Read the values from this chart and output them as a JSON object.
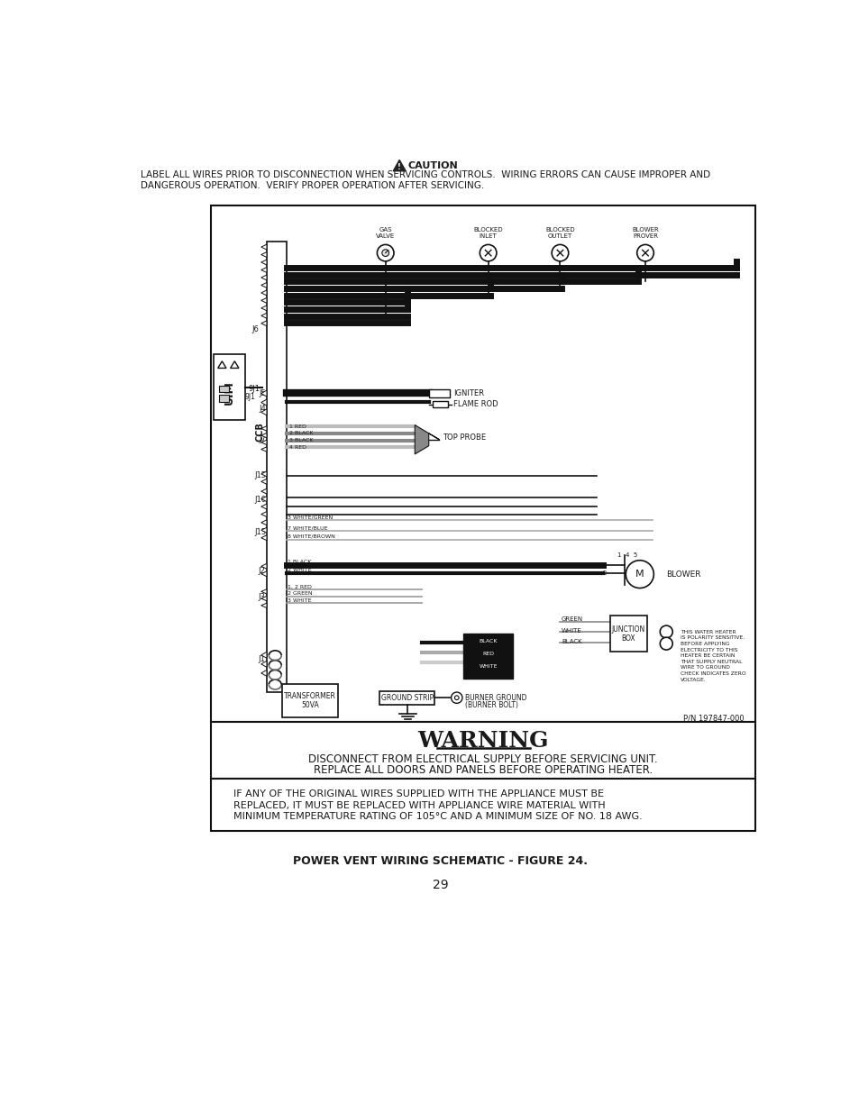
{
  "page_bg": "#ffffff",
  "text_color": "#1a1a1a",
  "caution_title": "CAUTION",
  "caution_line1": "LABEL ALL WIRES PRIOR TO DISCONNECTION WHEN SERVICING CONTROLS.  WIRING ERRORS CAN CAUSE IMPROPER AND",
  "caution_line2": "DANGEROUS OPERATION.  VERIFY PROPER OPERATION AFTER SERVICING.",
  "warning_title": "WARNING",
  "warning_line1": "DISCONNECT FROM ELECTRICAL SUPPLY BEFORE SERVICING UNIT.",
  "warning_line2": "REPLACE ALL DOORS AND PANELS BEFORE OPERATING HEATER.",
  "notice_line1": "IF ANY OF THE ORIGINAL WIRES SUPPLIED WITH THE APPLIANCE MUST BE",
  "notice_line2": "REPLACED, IT MUST BE REPLACED WITH APPLIANCE WIRE MATERIAL WITH",
  "notice_line3": "MINIMUM TEMPERATURE RATING OF 105°C AND A MINIMUM SIZE OF NO. 18 AWG.",
  "figure_caption": "POWER VENT WIRING SCHEMATIC - FIGURE 24.",
  "page_number": "29",
  "pn": "P/N 197847-000"
}
